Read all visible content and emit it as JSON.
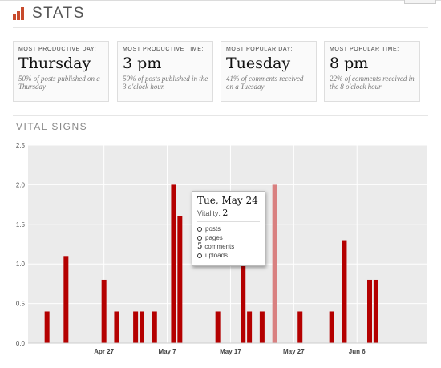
{
  "header": {
    "title": "STATS",
    "icon": "bar-chart-icon"
  },
  "cards": [
    {
      "label": "Most productive day:",
      "value": "Thursday",
      "desc": "50% of posts published on a Thursday"
    },
    {
      "label": "Most productive time:",
      "value": "3 pm",
      "desc": "50% of posts published in the 3 o'clock hour."
    },
    {
      "label": "Most popular day:",
      "value": "Tuesday",
      "desc": "41% of comments received on a Tuesday"
    },
    {
      "label": "Most popular time:",
      "value": "8 pm",
      "desc": "22% of comments received in the 8 o'clock hour"
    }
  ],
  "vital": {
    "title": "VITAL SIGNS"
  },
  "tooltip": {
    "date": "Tue, May 24",
    "vitality_label": "Vitality:",
    "vitality_value": "2",
    "items": [
      {
        "count": "",
        "label": "posts"
      },
      {
        "count": "",
        "label": "pages"
      },
      {
        "count": "5",
        "label": "comments"
      },
      {
        "count": "",
        "label": "uploads"
      }
    ]
  },
  "colors": {
    "bar": "#b40000",
    "bar_highlight": "#d98080",
    "plot_bg": "#ebebeb",
    "accent": "#c84a2c"
  },
  "chart_data": {
    "type": "bar",
    "title": "VITAL SIGNS",
    "xlabel": "",
    "ylabel": "",
    "ylim": [
      0,
      2.5
    ],
    "yticks": [
      "0.0",
      "0.5",
      "1.0",
      "1.5",
      "2.0",
      "2.5"
    ],
    "x_start": "Apr 15",
    "x_end": "Jun 17",
    "xticks": [
      "Apr 27",
      "May 7",
      "May 17",
      "May 27",
      "Jun 6"
    ],
    "grid": true,
    "highlight": "May 24",
    "series": [
      {
        "values": [
          {
            "date": "Apr 18",
            "value": 0.4
          },
          {
            "date": "Apr 21",
            "value": 1.1
          },
          {
            "date": "Apr 27",
            "value": 0.8
          },
          {
            "date": "Apr 29",
            "value": 0.4
          },
          {
            "date": "May 2",
            "value": 0.4
          },
          {
            "date": "May 3",
            "value": 0.4
          },
          {
            "date": "May 5",
            "value": 0.4
          },
          {
            "date": "May 8",
            "value": 2.0
          },
          {
            "date": "May 9",
            "value": 1.6
          },
          {
            "date": "May 15",
            "value": 0.4
          },
          {
            "date": "May 19",
            "value": 1.0
          },
          {
            "date": "May 20",
            "value": 0.4
          },
          {
            "date": "May 22",
            "value": 0.4
          },
          {
            "date": "May 24",
            "value": 2.0
          },
          {
            "date": "May 28",
            "value": 0.4
          },
          {
            "date": "Jun 2",
            "value": 0.4
          },
          {
            "date": "Jun 4",
            "value": 1.3
          },
          {
            "date": "Jun 8",
            "value": 0.8
          },
          {
            "date": "Jun 9",
            "value": 0.8
          }
        ]
      }
    ]
  }
}
